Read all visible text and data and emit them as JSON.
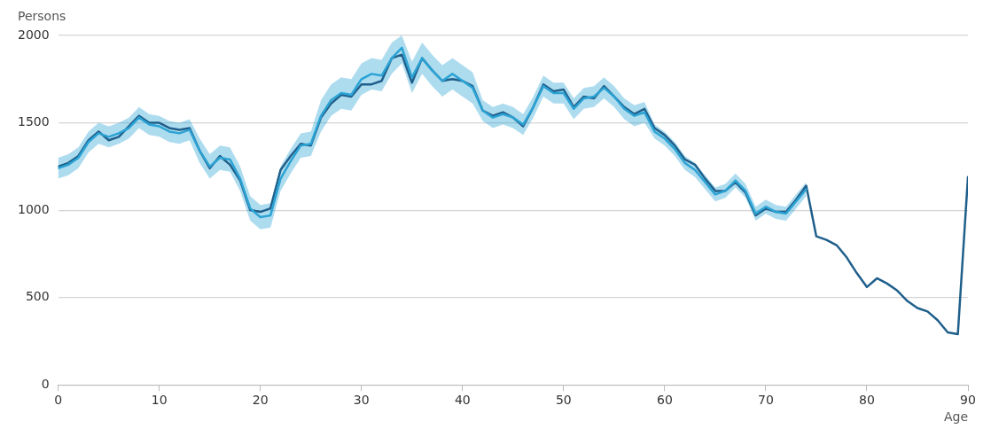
{
  "chart_data": {
    "type": "line",
    "xlabel": "Age",
    "ylabel": "Persons",
    "x": [
      0,
      1,
      2,
      3,
      4,
      5,
      6,
      7,
      8,
      9,
      10,
      11,
      12,
      13,
      14,
      15,
      16,
      17,
      18,
      19,
      20,
      21,
      22,
      23,
      24,
      25,
      26,
      27,
      28,
      29,
      30,
      31,
      32,
      33,
      34,
      35,
      36,
      37,
      38,
      39,
      40,
      41,
      42,
      43,
      44,
      45,
      46,
      47,
      48,
      49,
      50,
      51,
      52,
      53,
      54,
      55,
      56,
      57,
      58,
      59,
      60,
      61,
      62,
      63,
      64,
      65,
      66,
      67,
      68,
      69,
      70,
      71,
      72,
      73,
      74,
      75,
      76,
      77,
      78,
      79,
      80,
      81,
      82,
      83,
      84,
      85,
      86,
      87,
      88,
      89,
      90
    ],
    "series": [
      {
        "color": "#2ba3d4",
        "values": [
          1240,
          1260,
          1300,
          1390,
          1440,
          1420,
          1440,
          1470,
          1530,
          1490,
          1480,
          1450,
          1440,
          1460,
          1340,
          1250,
          1300,
          1290,
          1180,
          1010,
          960,
          970,
          1180,
          1280,
          1370,
          1380,
          1540,
          1630,
          1670,
          1660,
          1750,
          1780,
          1770,
          1870,
          1930,
          1760,
          1870,
          1800,
          1740,
          1780,
          1740,
          1700,
          1570,
          1530,
          1550,
          1530,
          1490,
          1590,
          1710,
          1670,
          1670,
          1580,
          1640,
          1650,
          1700,
          1650,
          1580,
          1540,
          1560,
          1450,
          1410,
          1350,
          1270,
          1230,
          1160,
          1090,
          1110,
          1170,
          1110,
          980,
          1020,
          990,
          980,
          1050,
          1120,
          null,
          null,
          null,
          null,
          null,
          null,
          null,
          null,
          null,
          null,
          null,
          null,
          null,
          null,
          null,
          null
        ],
        "upper": [
          1300,
          1320,
          1360,
          1450,
          1500,
          1480,
          1500,
          1530,
          1590,
          1550,
          1540,
          1510,
          1500,
          1520,
          1410,
          1320,
          1370,
          1360,
          1250,
          1080,
          1030,
          1040,
          1250,
          1350,
          1440,
          1450,
          1630,
          1720,
          1760,
          1750,
          1840,
          1870,
          1860,
          1960,
          2000,
          1850,
          1960,
          1890,
          1830,
          1870,
          1830,
          1790,
          1630,
          1590,
          1610,
          1590,
          1550,
          1650,
          1770,
          1730,
          1730,
          1640,
          1700,
          1710,
          1760,
          1710,
          1640,
          1600,
          1620,
          1490,
          1450,
          1390,
          1310,
          1270,
          1200,
          1130,
          1150,
          1210,
          1150,
          1020,
          1060,
          1030,
          1020,
          1090,
          1160,
          null,
          null,
          null,
          null,
          null,
          null,
          null,
          null,
          null,
          null,
          null,
          null,
          null,
          null,
          null,
          null
        ],
        "lower": [
          1180,
          1200,
          1240,
          1330,
          1380,
          1360,
          1380,
          1410,
          1470,
          1430,
          1420,
          1390,
          1380,
          1400,
          1270,
          1180,
          1230,
          1220,
          1110,
          940,
          890,
          900,
          1110,
          1210,
          1300,
          1310,
          1450,
          1540,
          1580,
          1570,
          1660,
          1690,
          1680,
          1780,
          1840,
          1670,
          1780,
          1710,
          1650,
          1690,
          1650,
          1610,
          1510,
          1470,
          1490,
          1470,
          1430,
          1530,
          1650,
          1610,
          1610,
          1520,
          1580,
          1590,
          1640,
          1590,
          1520,
          1480,
          1500,
          1410,
          1370,
          1310,
          1230,
          1190,
          1120,
          1050,
          1070,
          1130,
          1070,
          940,
          980,
          950,
          940,
          1010,
          1080,
          null,
          null,
          null,
          null,
          null,
          null,
          null,
          null,
          null,
          null,
          null,
          null,
          null,
          null,
          null,
          null
        ]
      },
      {
        "color": "#1f5f8b",
        "values": [
          1250,
          1270,
          1310,
          1400,
          1450,
          1400,
          1420,
          1480,
          1540,
          1500,
          1500,
          1470,
          1460,
          1470,
          1340,
          1240,
          1310,
          1260,
          1170,
          1000,
          990,
          1010,
          1230,
          1310,
          1380,
          1370,
          1530,
          1610,
          1660,
          1650,
          1720,
          1720,
          1740,
          1870,
          1890,
          1730,
          1870,
          1800,
          1740,
          1750,
          1740,
          1710,
          1570,
          1540,
          1560,
          1530,
          1480,
          1590,
          1720,
          1680,
          1690,
          1590,
          1650,
          1640,
          1710,
          1650,
          1590,
          1550,
          1580,
          1470,
          1430,
          1370,
          1290,
          1260,
          1180,
          1110,
          1110,
          1160,
          1100,
          970,
          1010,
          990,
          990,
          1060,
          1140,
          850,
          830,
          800,
          730,
          640,
          560,
          610,
          580,
          540,
          480,
          440,
          420,
          370,
          300,
          290,
          1190
        ]
      }
    ],
    "xlim": [
      0,
      90
    ],
    "xticks": [
      0,
      10,
      20,
      30,
      40,
      50,
      60,
      70,
      80,
      90
    ],
    "ylim": [
      0,
      2000
    ],
    "yticks": [
      0,
      500,
      1000,
      1500,
      2000
    ],
    "grid": "y",
    "legend": false,
    "marker": "none",
    "line_style": "solid"
  }
}
